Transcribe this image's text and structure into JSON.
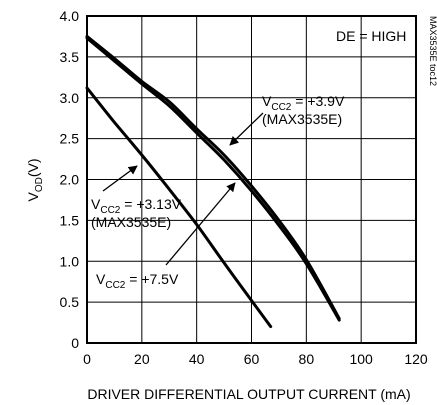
{
  "chart_data": {
    "type": "line",
    "xlabel": "DRIVER DIFFERENTIAL OUTPUT CURRENT (mA)",
    "ylabel_main": "V",
    "ylabel_sub": "OD",
    "ylabel_unit": "(V)",
    "xlim": [
      0,
      120
    ],
    "ylim": [
      0,
      4.0
    ],
    "x_ticks": [
      "0",
      "20",
      "40",
      "60",
      "80",
      "100",
      "120"
    ],
    "y_ticks": [
      "0",
      "0.5",
      "1.0",
      "1.5",
      "2.0",
      "2.5",
      "3.0",
      "3.5",
      "4.0"
    ],
    "grid": true,
    "condition_label": "DE = HIGH",
    "figure_id": "MAX3535E toc12",
    "series": [
      {
        "label_main": "V",
        "label_sub": "CC2",
        "label_value": " = +3.9V",
        "label_part": "(MAX3535E)",
        "x": [
          0,
          10,
          20,
          30,
          40,
          50,
          60,
          70,
          80,
          92
        ],
        "y": [
          3.75,
          3.48,
          3.2,
          2.95,
          2.62,
          2.3,
          1.92,
          1.5,
          1.02,
          0.3
        ]
      },
      {
        "label_main": "V",
        "label_sub": "CC2",
        "label_value": " = +7.5V",
        "label_part": "",
        "x": [
          0,
          10,
          20,
          30,
          40,
          50,
          60,
          70,
          80,
          92
        ],
        "y": [
          3.73,
          3.45,
          3.17,
          2.9,
          2.57,
          2.24,
          1.86,
          1.44,
          0.97,
          0.28
        ]
      },
      {
        "label_main": "V",
        "label_sub": "CC2",
        "label_value": " = +3.13V",
        "label_part": "(MAX3535E)",
        "x": [
          0,
          10,
          20,
          30,
          40,
          50,
          60,
          67
        ],
        "y": [
          3.12,
          2.7,
          2.3,
          1.88,
          1.45,
          0.98,
          0.52,
          0.2
        ]
      }
    ]
  }
}
